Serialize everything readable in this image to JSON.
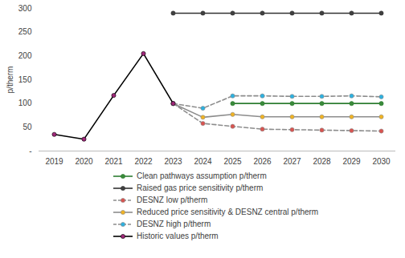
{
  "chart_data": {
    "type": "line",
    "y_label": "p/therm",
    "categories": [
      "2019",
      "2020",
      "2021",
      "2022",
      "2023",
      "2024",
      "2025",
      "2026",
      "2027",
      "2028",
      "2029",
      "2030"
    ],
    "ylim": [
      0,
      300
    ],
    "yticks": [
      {
        "value": 0,
        "label": "-"
      },
      50,
      100,
      150,
      200,
      250,
      300
    ],
    "grid": false,
    "legend": "bottom",
    "series": [
      {
        "name": "Clean pathways assumption p/therm",
        "color": "#3a8a3a",
        "marker": "circle",
        "line_style": "solid",
        "values": [
          null,
          null,
          null,
          null,
          null,
          null,
          100,
          100,
          100,
          100,
          100,
          100
        ]
      },
      {
        "name": "Raised gas price sensitivity p/therm",
        "color": "#404040",
        "marker": "circle",
        "line_style": "solid",
        "values": [
          null,
          null,
          null,
          null,
          290,
          290,
          290,
          290,
          290,
          290,
          290,
          290
        ]
      },
      {
        "name": "DESNZ low p/therm",
        "color": "#d9534f",
        "marker": "circle",
        "line_style": "dashed",
        "values": [
          null,
          null,
          null,
          null,
          100,
          58,
          52,
          46,
          45,
          44,
          43,
          42
        ]
      },
      {
        "name": "Reduced price sensitivity & DESNZ central p/therm",
        "color": "#f0b323",
        "marker": "circle",
        "line_style": "solid",
        "values": [
          null,
          null,
          null,
          null,
          100,
          71,
          77,
          72,
          72,
          72,
          72,
          72
        ]
      },
      {
        "name": "DESNZ high p/therm",
        "color": "#2db1e0",
        "marker": "circle",
        "line_style": "dashed",
        "values": [
          null,
          null,
          null,
          null,
          100,
          90,
          116,
          116,
          115,
          115,
          116,
          114
        ]
      },
      {
        "name": "Historic values p/therm",
        "color": "#a0287a",
        "marker": "circle",
        "line_style": "solid",
        "values": [
          35,
          25,
          117,
          205,
          100,
          null,
          null,
          null,
          null,
          null,
          null,
          null
        ]
      }
    ]
  }
}
